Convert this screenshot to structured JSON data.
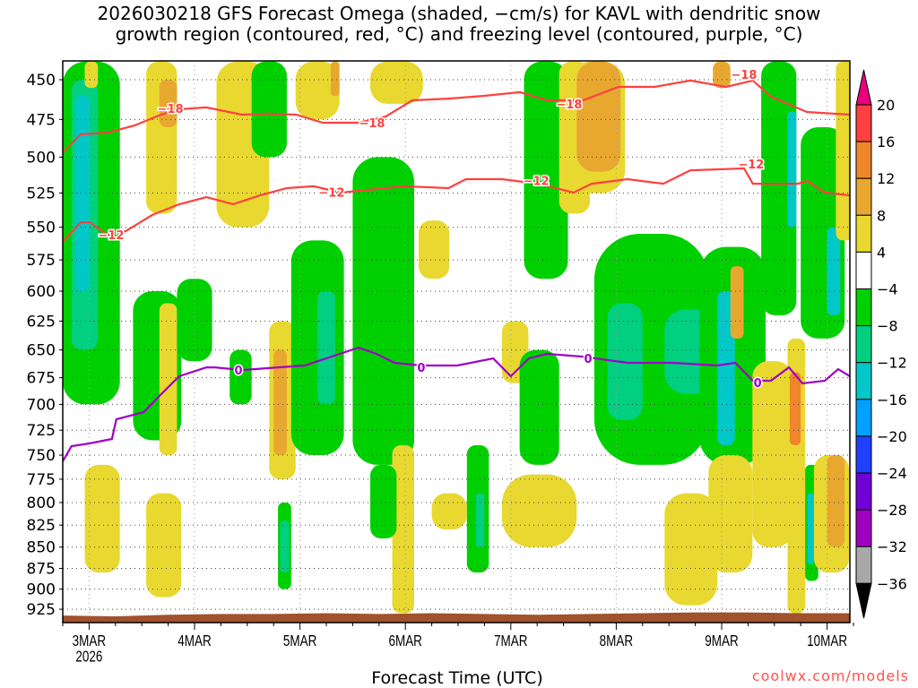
{
  "title": {
    "line1": "2026030218 GFS Forecast Omega (shaded, −cm/s) for KAVL with dendritic snow",
    "line2": "growth region (contoured, red, °C) and freezing level (contoured, purple, °C)"
  },
  "watermark": "coolwx.com/models",
  "chart_data": {
    "type": "heatmap",
    "xlabel": "Forecast Time (UTC)",
    "ylabel": "",
    "x_units": "hours since 2026-03-02 18Z",
    "xlim": [
      0,
      180
    ],
    "ylim_hPa": [
      439,
      941
    ],
    "y_scale": "log-pressure",
    "grid": true,
    "y_ticks": [
      450,
      475,
      500,
      525,
      550,
      575,
      600,
      625,
      650,
      675,
      700,
      725,
      750,
      775,
      800,
      825,
      850,
      875,
      900,
      925
    ],
    "x_ticks": [
      {
        "hour": 6,
        "label": "3MAR",
        "sub": "2026"
      },
      {
        "hour": 30,
        "label": "4MAR"
      },
      {
        "hour": 54,
        "label": "5MAR"
      },
      {
        "hour": 78,
        "label": "6MAR"
      },
      {
        "hour": 102,
        "label": "7MAR"
      },
      {
        "hour": 126,
        "label": "8MAR"
      },
      {
        "hour": 150,
        "label": "9MAR"
      },
      {
        "hour": 174,
        "label": "10MAR"
      }
    ],
    "colorbar": {
      "levels": [
        20,
        16,
        12,
        8,
        4,
        -4,
        -8,
        -12,
        -16,
        -20,
        -24,
        -28,
        -32,
        -36
      ],
      "labels": [
        "20",
        "16",
        "12",
        "8",
        "4",
        "−4",
        "−8",
        "−12",
        "−16",
        "−20",
        "−24",
        "−28",
        "−32",
        "−36"
      ],
      "over_color": "#e8007c",
      "colors": [
        "#ff4040",
        "#f0862a",
        "#e8a830",
        "#e8d830",
        "#ffffff",
        "#00d000",
        "#00d080",
        "#00c8c8",
        "#00a0ff",
        "#2040ff",
        "#7000d8",
        "#a000c0",
        "#a8a8a8"
      ],
      "under_color": "#000000"
    },
    "shaded_omega": [
      [
        0,
        13,
        439,
        700,
        -6
      ],
      [
        2,
        8,
        450,
        650,
        -10
      ],
      [
        3,
        6,
        460,
        600,
        -14
      ],
      [
        5,
        8,
        439,
        455,
        6
      ],
      [
        19,
        26,
        439,
        540,
        6
      ],
      [
        22,
        26,
        450,
        480,
        10
      ],
      [
        16,
        27,
        600,
        735,
        -6
      ],
      [
        22,
        26,
        610,
        750,
        6
      ],
      [
        5,
        13,
        760,
        880,
        6
      ],
      [
        19,
        27,
        790,
        910,
        6
      ],
      [
        35,
        47,
        439,
        550,
        6
      ],
      [
        26,
        34,
        590,
        660,
        -6
      ],
      [
        38,
        43,
        650,
        700,
        -6
      ],
      [
        43,
        51,
        439,
        500,
        -6
      ],
      [
        47,
        53,
        625,
        775,
        6
      ],
      [
        48,
        51,
        650,
        750,
        10
      ],
      [
        52,
        64,
        560,
        750,
        -6
      ],
      [
        66,
        80,
        500,
        760,
        -6
      ],
      [
        58,
        62,
        600,
        700,
        -10
      ],
      [
        49,
        52,
        800,
        900,
        -6
      ],
      [
        49.5,
        51.5,
        820,
        880,
        -10
      ],
      [
        53,
        63,
        439,
        475,
        6
      ],
      [
        61,
        63,
        439,
        460,
        10
      ],
      [
        70,
        82,
        439,
        465,
        6
      ],
      [
        75,
        80,
        740,
        930,
        6
      ],
      [
        70,
        76,
        760,
        840,
        -6
      ],
      [
        81,
        88,
        545,
        590,
        6
      ],
      [
        92,
        97,
        740,
        880,
        -6
      ],
      [
        94,
        96,
        790,
        850,
        -10
      ],
      [
        84,
        92,
        790,
        830,
        6
      ],
      [
        100,
        117,
        770,
        850,
        6
      ],
      [
        100,
        106,
        625,
        680,
        6
      ],
      [
        105,
        115,
        439,
        590,
        -6
      ],
      [
        113,
        120,
        439,
        540,
        6
      ],
      [
        104,
        113,
        650,
        760,
        -6
      ],
      [
        115,
        128,
        439,
        525,
        8
      ],
      [
        117,
        127,
        439,
        510,
        10
      ],
      [
        121,
        147,
        555,
        760,
        -6
      ],
      [
        124,
        132,
        610,
        715,
        -10
      ],
      [
        137,
        149,
        615,
        690,
        -10
      ],
      [
        145,
        160,
        565,
        760,
        -6
      ],
      [
        149,
        153,
        600,
        740,
        -14
      ],
      [
        147,
        157,
        750,
        880,
        6
      ],
      [
        137,
        149,
        790,
        920,
        6
      ],
      [
        152,
        155,
        580,
        640,
        10
      ],
      [
        157,
        166,
        660,
        850,
        6
      ],
      [
        159,
        167,
        439,
        620,
        -6
      ],
      [
        165,
        167,
        470,
        550,
        -14
      ],
      [
        168,
        178,
        480,
        640,
        -6
      ],
      [
        174,
        177,
        550,
        620,
        -14
      ],
      [
        165,
        169,
        640,
        930,
        6
      ],
      [
        165.5,
        168,
        670,
        740,
        14
      ],
      [
        169,
        172,
        760,
        890,
        -6
      ],
      [
        169.5,
        171,
        790,
        870,
        -14
      ],
      [
        171,
        179,
        750,
        880,
        6
      ],
      [
        174,
        178,
        750,
        850,
        12
      ],
      [
        176,
        180,
        439,
        560,
        6
      ],
      [
        148,
        152,
        439,
        455,
        10
      ]
    ],
    "series": [
      {
        "name": "-18 °C isotherm",
        "color": "#ff4040",
        "label": "−18",
        "points": [
          [
            0,
            496.7
          ],
          [
            4.1,
            484.7
          ],
          [
            10.2,
            483.6
          ],
          [
            16.3,
            478.9
          ],
          [
            22.4,
            471.9
          ],
          [
            26.5,
            468.5
          ],
          [
            32.7,
            467.3
          ],
          [
            40.8,
            471.9
          ],
          [
            46.9,
            471.3
          ],
          [
            53.1,
            471.9
          ],
          [
            59.2,
            477.1
          ],
          [
            67.3,
            477.1
          ],
          [
            73.5,
            473.1
          ],
          [
            79.6,
            462.8
          ],
          [
            87.8,
            461.7
          ],
          [
            95.9,
            460
          ],
          [
            104.1,
            457.7
          ],
          [
            110.2,
            462.8
          ],
          [
            118.4,
            462.8
          ],
          [
            126.5,
            454.4
          ],
          [
            134.7,
            454.4
          ],
          [
            142.9,
            450.5
          ],
          [
            151,
            454.4
          ],
          [
            157.1,
            450.5
          ],
          [
            161.2,
            460.5
          ],
          [
            169.4,
            470.2
          ],
          [
            179.2,
            471.9
          ]
        ],
        "label_points": [
          [
            24.5,
            467.8
          ],
          [
            70.4,
            477
          ],
          [
            115.3,
            465
          ],
          [
            155.1,
            446.7
          ]
        ]
      },
      {
        "name": "-12 °C isotherm",
        "color": "#ff4040",
        "label": "−12",
        "points": [
          [
            0,
            561.1
          ],
          [
            4.1,
            546.3
          ],
          [
            6.1,
            546.3
          ],
          [
            10.2,
            555.7
          ],
          [
            14.3,
            553
          ],
          [
            20.4,
            540.9
          ],
          [
            26.5,
            533.1
          ],
          [
            32.7,
            527.9
          ],
          [
            38.8,
            533.1
          ],
          [
            44.9,
            526.7
          ],
          [
            51,
            521.5
          ],
          [
            57.1,
            520.2
          ],
          [
            63.3,
            524.7
          ],
          [
            69.4,
            522.8
          ],
          [
            77.6,
            520.2
          ],
          [
            87.8,
            521.5
          ],
          [
            91.8,
            515.2
          ],
          [
            100,
            515.2
          ],
          [
            108.2,
            518.4
          ],
          [
            116.3,
            524.7
          ],
          [
            120.4,
            518.4
          ],
          [
            128.6,
            515.2
          ],
          [
            136.7,
            518.4
          ],
          [
            142.9,
            509
          ],
          [
            155.1,
            507.7
          ],
          [
            157.1,
            518.4
          ],
          [
            167.3,
            518.4
          ],
          [
            169.4,
            516.5
          ],
          [
            173.5,
            524.7
          ],
          [
            179.2,
            526.7
          ]
        ],
        "label_points": [
          [
            11,
            555.7
          ],
          [
            61.2,
            524.4
          ],
          [
            107.8,
            516
          ],
          [
            156.7,
            504.7
          ]
        ]
      },
      {
        "name": "0 °C freezing level",
        "color": "#a000c8",
        "label": "0",
        "points": [
          [
            0,
            756.4
          ],
          [
            2,
            740.9
          ],
          [
            6.1,
            738.2
          ],
          [
            11.2,
            733.7
          ],
          [
            12.2,
            714.3
          ],
          [
            18.4,
            707.4
          ],
          [
            22.4,
            690.3
          ],
          [
            26.5,
            673.7
          ],
          [
            32.7,
            665.6
          ],
          [
            34.7,
            665.6
          ],
          [
            40.8,
            668
          ],
          [
            49,
            665.6
          ],
          [
            55.1,
            663.9
          ],
          [
            61.2,
            655.9
          ],
          [
            67.3,
            647.9
          ],
          [
            71.4,
            653.5
          ],
          [
            75.5,
            661.5
          ],
          [
            81.6,
            663.9
          ],
          [
            89.8,
            663.9
          ],
          [
            98,
            657.5
          ],
          [
            102,
            673.7
          ],
          [
            106.1,
            657.5
          ],
          [
            110.2,
            653.5
          ],
          [
            118.4,
            655.9
          ],
          [
            128.6,
            661.5
          ],
          [
            138.8,
            661.5
          ],
          [
            149,
            663.9
          ],
          [
            153.1,
            661.5
          ],
          [
            157.1,
            677.8
          ],
          [
            161.2,
            677.8
          ],
          [
            165.3,
            665.6
          ],
          [
            168.4,
            680.3
          ],
          [
            173.5,
            677.8
          ],
          [
            176.5,
            667.2
          ],
          [
            179.2,
            673.7
          ]
        ],
        "label_points": [
          [
            40,
            668
          ],
          [
            81.6,
            665.6
          ],
          [
            119.6,
            657.5
          ],
          [
            158.2,
            679.5
          ]
        ]
      }
    ],
    "terrain": {
      "color": "#a0522d",
      "surface_hPa": [
        [
          0,
          933
        ],
        [
          12,
          934
        ],
        [
          24,
          932
        ],
        [
          36,
          931
        ],
        [
          48,
          931
        ],
        [
          60,
          930
        ],
        [
          72,
          931
        ],
        [
          84,
          930
        ],
        [
          96,
          931
        ],
        [
          108,
          932
        ],
        [
          120,
          931
        ],
        [
          132,
          930
        ],
        [
          144,
          929
        ],
        [
          156,
          929
        ],
        [
          168,
          930
        ],
        [
          180,
          930
        ]
      ]
    }
  }
}
